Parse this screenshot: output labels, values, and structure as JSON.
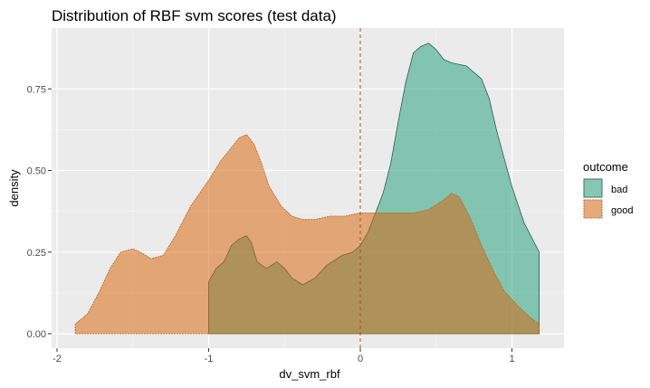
{
  "chart_data": {
    "type": "area",
    "title": "Distribution of RBF svm scores (test data)",
    "xlabel": "dv_svm_rbf",
    "ylabel": "density",
    "xlim": [
      -2,
      1.2
    ],
    "ylim": [
      0,
      0.92
    ],
    "x_ticks": [
      -2,
      -1,
      0,
      1
    ],
    "x_tick_labels": [
      "-2",
      "-1",
      "0",
      "1"
    ],
    "y_ticks": [
      0,
      0.25,
      0.5,
      0.75
    ],
    "y_tick_labels": [
      "0.00",
      "0.25",
      "0.50",
      "0.75"
    ],
    "grid": true,
    "legend": {
      "title": "outcome",
      "position": "right"
    },
    "vline": {
      "x": 0,
      "style": "dashed",
      "color": "#a0522d"
    },
    "series": [
      {
        "name": "bad",
        "color": "#1b9e77",
        "opacity": 0.5,
        "x": [
          -1.0,
          -0.95,
          -0.9,
          -0.85,
          -0.8,
          -0.75,
          -0.72,
          -0.68,
          -0.62,
          -0.55,
          -0.5,
          -0.45,
          -0.38,
          -0.3,
          -0.22,
          -0.12,
          -0.05,
          0.0,
          0.05,
          0.1,
          0.15,
          0.2,
          0.25,
          0.3,
          0.35,
          0.4,
          0.45,
          0.5,
          0.55,
          0.6,
          0.7,
          0.8,
          0.85,
          0.9,
          1.0,
          1.08,
          1.18
        ],
        "y": [
          0.16,
          0.2,
          0.22,
          0.27,
          0.29,
          0.3,
          0.28,
          0.22,
          0.2,
          0.22,
          0.2,
          0.17,
          0.15,
          0.17,
          0.21,
          0.24,
          0.25,
          0.27,
          0.31,
          0.37,
          0.43,
          0.52,
          0.65,
          0.77,
          0.86,
          0.88,
          0.89,
          0.87,
          0.84,
          0.83,
          0.82,
          0.78,
          0.72,
          0.62,
          0.45,
          0.34,
          0.25
        ]
      },
      {
        "name": "good",
        "color": "#d95f02",
        "opacity": 0.5,
        "x": [
          -1.88,
          -1.8,
          -1.72,
          -1.65,
          -1.58,
          -1.5,
          -1.45,
          -1.38,
          -1.3,
          -1.22,
          -1.12,
          -1.0,
          -0.92,
          -0.85,
          -0.8,
          -0.75,
          -0.7,
          -0.65,
          -0.6,
          -0.52,
          -0.45,
          -0.38,
          -0.3,
          -0.2,
          -0.1,
          0.0,
          0.05,
          0.15,
          0.25,
          0.35,
          0.45,
          0.55,
          0.6,
          0.65,
          0.72,
          0.8,
          0.88,
          0.95,
          1.05,
          1.12,
          1.18
        ],
        "y": [
          0.03,
          0.06,
          0.13,
          0.2,
          0.25,
          0.26,
          0.25,
          0.23,
          0.24,
          0.3,
          0.39,
          0.47,
          0.53,
          0.57,
          0.6,
          0.61,
          0.58,
          0.52,
          0.45,
          0.39,
          0.36,
          0.35,
          0.35,
          0.36,
          0.36,
          0.37,
          0.37,
          0.37,
          0.37,
          0.37,
          0.38,
          0.41,
          0.43,
          0.42,
          0.36,
          0.27,
          0.19,
          0.13,
          0.08,
          0.05,
          0.03
        ]
      }
    ]
  }
}
